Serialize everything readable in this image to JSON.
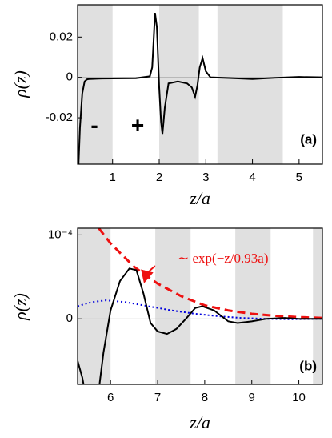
{
  "chart_data": [
    {
      "type": "line",
      "ylabel": "ρ(z)",
      "xlabel": "z/a",
      "xlim": [
        0.25,
        5.5
      ],
      "ylim": [
        -0.043,
        0.036
      ],
      "xticks": [
        1,
        2,
        3,
        4,
        5
      ],
      "yticks": [
        -0.02,
        0,
        0.02
      ],
      "zero_line": true,
      "band_color": "#e0e0e0",
      "bands": [
        [
          0.25,
          1.0
        ],
        [
          2.0,
          2.85
        ],
        [
          3.25,
          4.65
        ]
      ],
      "series": [
        {
          "color": "#000000",
          "style": "solid",
          "x": [
            0.27,
            0.3,
            0.35,
            0.4,
            0.45,
            0.5,
            0.7,
            1.0,
            1.5,
            1.8,
            1.85,
            1.88,
            1.91,
            1.95,
            2.0,
            2.04,
            2.07,
            2.12,
            2.2,
            2.4,
            2.6,
            2.7,
            2.77,
            2.82,
            2.87,
            2.93,
            3.0,
            3.1,
            3.5,
            4.0,
            4.5,
            5.0,
            5.5
          ],
          "values": [
            -0.043,
            -0.025,
            -0.008,
            -0.002,
            -0.001,
            -0.0008,
            -0.0006,
            -0.0005,
            -0.0004,
            0.0005,
            0.005,
            0.018,
            0.032,
            0.025,
            -0.005,
            -0.022,
            -0.028,
            -0.015,
            -0.003,
            -0.002,
            -0.003,
            -0.005,
            -0.0096,
            -0.004,
            0.005,
            0.0096,
            0.003,
            0.0,
            -0.0003,
            -0.0008,
            -0.0002,
            0.0002,
            0
          ]
        }
      ],
      "annotations": [
        "-",
        "+",
        "(a)"
      ]
    },
    {
      "type": "line",
      "ylabel": "ρ(z)",
      "xlabel": "z/a",
      "xlim": [
        5.3,
        10.5
      ],
      "ylim": [
        -7.8e-05,
        0.000108
      ],
      "xticks": [
        6,
        7,
        8,
        9,
        10
      ],
      "yticks": [
        0,
        {
          "value": 0.0001,
          "label": "10⁻⁴"
        }
      ],
      "zero_line": true,
      "band_color": "#e0e0e0",
      "bands": [
        [
          5.3,
          6.0
        ],
        [
          6.95,
          7.7
        ],
        [
          8.65,
          9.4
        ],
        [
          10.3,
          10.5
        ]
      ],
      "series": [
        {
          "color": "#0000dd",
          "style": "dotted",
          "x": [
            5.3,
            5.6,
            5.9,
            6.3,
            6.8,
            7.3,
            7.8,
            8.3,
            8.8,
            9.3,
            9.8,
            10.5
          ],
          "values": [
            1.5e-05,
            2e-05,
            2.2e-05,
            2e-05,
            1.5e-05,
            1e-05,
            6e-06,
            3e-06,
            1e-06,
            0.0,
            -5e-07,
            0.0
          ]
        },
        {
          "color": "#ee1111",
          "style": "dashed",
          "x": [
            5.75,
            6.0,
            6.5,
            7.0,
            7.5,
            8.0,
            8.5,
            9.0,
            9.5,
            10.0,
            10.5
          ],
          "values": [
            0.000108,
            9e-05,
            6.2e-05,
            4.2e-05,
            2.7e-05,
            1.6e-05,
            1e-05,
            6e-06,
            3.5e-06,
            2e-06,
            1e-06
          ]
        },
        {
          "color": "#000000",
          "style": "solid",
          "x": [
            5.3,
            5.4,
            5.45,
            5.75,
            5.85,
            6.0,
            6.2,
            6.4,
            6.55,
            6.7,
            6.85,
            7.0,
            7.2,
            7.4,
            7.6,
            7.8,
            7.95,
            8.2,
            8.5,
            8.7,
            9.0,
            9.3,
            9.7,
            10.0,
            10.5
          ],
          "values": [
            -5e-05,
            -7e-05,
            -8.5e-05,
            -8.5e-05,
            -4e-05,
            1e-05,
            4.5e-05,
            6e-05,
            5.8e-05,
            3e-05,
            -5e-06,
            -1.5e-05,
            -1.8e-05,
            -1.2e-05,
            0.0,
            1.3e-05,
            1.5e-05,
            1e-05,
            -3e-06,
            -5e-06,
            -3e-06,
            0.0,
            1e-06,
            0.0,
            0.0
          ]
        }
      ],
      "annotations": [
        "∼ exp(−z/0.93a)",
        "(b)"
      ]
    }
  ]
}
